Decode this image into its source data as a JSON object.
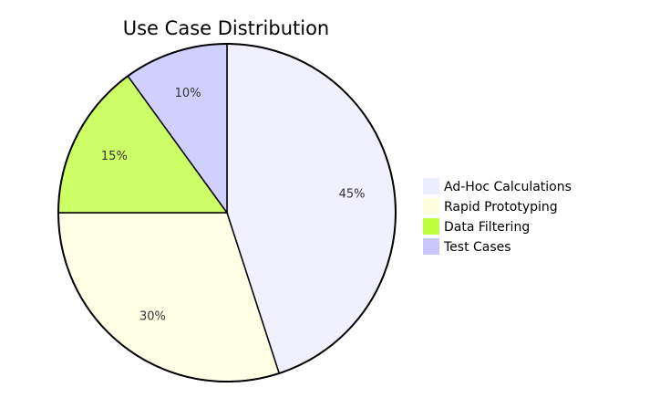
{
  "chart_data": {
    "type": "pie",
    "title": "Use Case Distribution",
    "categories": [
      "Ad-Hoc Calculations",
      "Rapid Prototyping",
      "Data Filtering",
      "Test Cases"
    ],
    "values": [
      45,
      30,
      15,
      10
    ],
    "labels": [
      "45%",
      "30%",
      "15%",
      "10%"
    ],
    "colors": [
      "#ECECFF",
      "#FFFFDE",
      "#BFFF3F",
      "#C8C8FF"
    ],
    "fill_colors": [
      "#F0F0FF",
      "#FFFFE6",
      "#CCFF66",
      "#D0D0FF"
    ],
    "legend_position": "right"
  }
}
